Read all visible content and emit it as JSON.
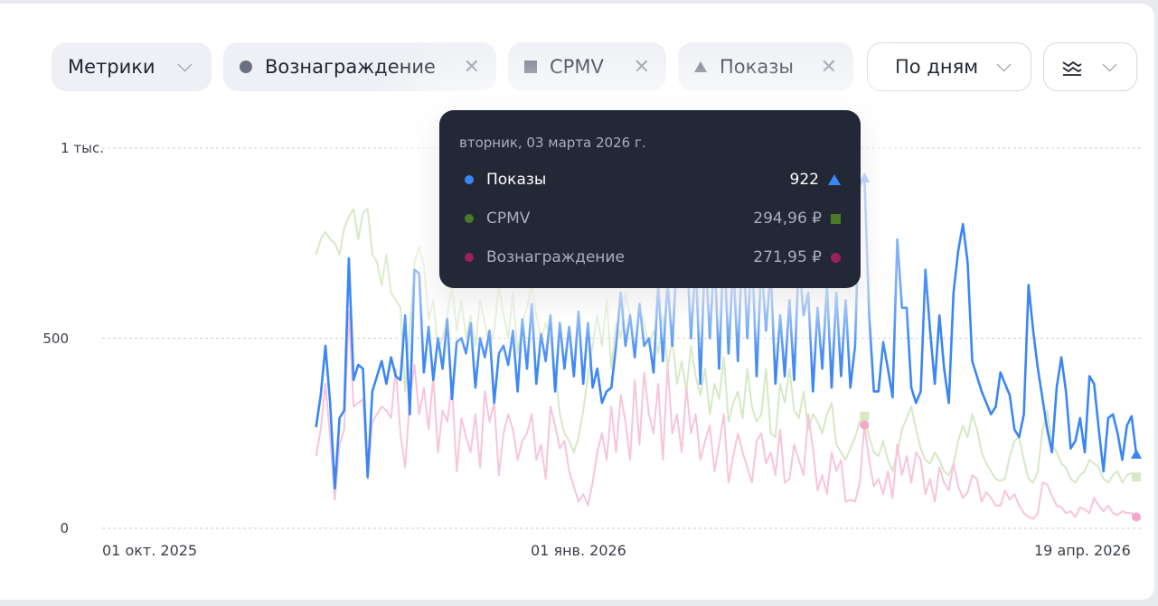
{
  "toolbar": {
    "metrics_label": "Метрики",
    "chips": [
      {
        "label": "Вознаграждение",
        "marker": "circle"
      },
      {
        "label": "CPMV",
        "marker": "square"
      },
      {
        "label": "Показы",
        "marker": "triangle"
      }
    ],
    "period_label": "По дням",
    "chart_type_icon": "chart-lines-icon"
  },
  "tooltip": {
    "date": "вторник, 03 марта 2026 г.",
    "rows": [
      {
        "name": "Показы",
        "value": "922",
        "color": "#3a86f5"
      },
      {
        "name": "CPMV",
        "value": "294,96 ₽",
        "color": "#4a7a2a"
      },
      {
        "name": "Вознаграждение",
        "value": "271,95 ₽",
        "color": "#9c1f5e"
      }
    ]
  },
  "chart_data": {
    "type": "line",
    "x_start": "2025-11-06",
    "x_step": "1 day",
    "xlim": [
      "2025-09-24",
      "2026-04-30"
    ],
    "x_ticks": [
      {
        "date": "2025-10-01",
        "label": "01 окт. 2025"
      },
      {
        "date": "2026-01-01",
        "label": "01 янв. 2026"
      },
      {
        "date": "2026-04-19",
        "label": "19 апр. 2026"
      }
    ],
    "y_ticks": [
      {
        "value": 0,
        "label": "0"
      },
      {
        "value": 500,
        "label": "500"
      },
      {
        "value": 1000,
        "label": "1 тыс."
      }
    ],
    "ylim": [
      0,
      1000
    ],
    "grid": true,
    "hover_index": 117,
    "series": [
      {
        "name": "CPMV",
        "color": "#d6e8c4",
        "marker": "square",
        "values": [
          720,
          760,
          780,
          760,
          750,
          720,
          790,
          820,
          840,
          760,
          830,
          840,
          720,
          700,
          640,
          720,
          620,
          600,
          580,
          360,
          530,
          700,
          740,
          690,
          550,
          600,
          470,
          500,
          560,
          640,
          520,
          600,
          500,
          560,
          480,
          600,
          540,
          480,
          520,
          640,
          560,
          500,
          620,
          460,
          540,
          580,
          640,
          560,
          500,
          540,
          500,
          420,
          300,
          250,
          230,
          200,
          240,
          310,
          400,
          480,
          560,
          480,
          600,
          420,
          540,
          500,
          620,
          560,
          470,
          580,
          540,
          480,
          520,
          460,
          560,
          420,
          500,
          380,
          440,
          360,
          480,
          400,
          350,
          420,
          300,
          380,
          340,
          450,
          280,
          330,
          360,
          290,
          420,
          320,
          280,
          300,
          420,
          250,
          240,
          380,
          330,
          420,
          310,
          290,
          360,
          260,
          300,
          280,
          250,
          300,
          330,
          220,
          200,
          180,
          210,
          240,
          280,
          295,
          240,
          200,
          190,
          230,
          180,
          150,
          200,
          260,
          290,
          320,
          260,
          210,
          180,
          170,
          200,
          180,
          150,
          140,
          170,
          230,
          270,
          240,
          300,
          260,
          200,
          170,
          150,
          130,
          125,
          130,
          190,
          230,
          240,
          180,
          130,
          120,
          150,
          260,
          310,
          220,
          200,
          170,
          160,
          130,
          120,
          140,
          150,
          180,
          170,
          160,
          130,
          120,
          140,
          150,
          120,
          140,
          145,
          135
        ]
      },
      {
        "name": "Вознаграждение",
        "color": "#f7c4dc",
        "marker": "circle",
        "values": [
          190,
          260,
          380,
          240,
          75,
          220,
          260,
          570,
          320,
          330,
          340,
          130,
          280,
          300,
          320,
          310,
          290,
          420,
          250,
          160,
          340,
          430,
          300,
          370,
          260,
          400,
          200,
          310,
          280,
          380,
          150,
          290,
          240,
          200,
          300,
          160,
          360,
          280,
          330,
          140,
          250,
          300,
          260,
          180,
          230,
          250,
          300,
          180,
          220,
          130,
          320,
          270,
          210,
          230,
          150,
          110,
          70,
          90,
          60,
          120,
          200,
          250,
          180,
          320,
          200,
          350,
          280,
          180,
          390,
          220,
          410,
          300,
          250,
          380,
          180,
          430,
          250,
          300,
          200,
          370,
          250,
          300,
          180,
          230,
          270,
          150,
          220,
          300,
          120,
          190,
          250,
          200,
          160,
          120,
          230,
          250,
          170,
          200,
          140,
          260,
          120,
          130,
          220,
          180,
          140,
          300,
          210,
          100,
          140,
          90,
          200,
          150,
          180,
          70,
          75,
          70,
          120,
          272,
          180,
          110,
          130,
          90,
          150,
          80,
          220,
          140,
          190,
          120,
          200,
          180,
          90,
          130,
          70,
          160,
          120,
          100,
          170,
          110,
          80,
          95,
          140,
          130,
          70,
          95,
          80,
          60,
          60,
          100,
          75,
          90,
          60,
          40,
          30,
          25,
          40,
          120,
          115,
          85,
          60,
          55,
          40,
          45,
          30,
          55,
          50,
          40,
          80,
          60,
          45,
          60,
          40,
          35,
          45,
          40,
          40,
          30
        ]
      },
      {
        "name": "Показы",
        "color": "#3a86f5",
        "marker": "triangle",
        "values": [
          266,
          350,
          480,
          330,
          105,
          290,
          310,
          710,
          390,
          430,
          420,
          135,
          360,
          400,
          440,
          380,
          450,
          400,
          390,
          560,
          300,
          680,
          670,
          410,
          530,
          390,
          500,
          420,
          550,
          340,
          490,
          500,
          460,
          540,
          370,
          500,
          450,
          520,
          330,
          460,
          480,
          430,
          520,
          360,
          550,
          420,
          590,
          380,
          510,
          440,
          560,
          360,
          540,
          420,
          530,
          400,
          570,
          380,
          540,
          370,
          420,
          330,
          360,
          370,
          480,
          620,
          480,
          560,
          450,
          590,
          480,
          500,
          410,
          640,
          440,
          650,
          480,
          720,
          660,
          750,
          500,
          700,
          380,
          740,
          500,
          720,
          420,
          760,
          460,
          700,
          440,
          780,
          500,
          740,
          400,
          700,
          520,
          680,
          380,
          560,
          400,
          600,
          390,
          720,
          560,
          620,
          360,
          580,
          420,
          640,
          370,
          620,
          400,
          600,
          370,
          480,
          900,
          922,
          560,
          360,
          360,
          490,
          420,
          345,
          760,
          580,
          580,
          370,
          330,
          360,
          680,
          520,
          380,
          560,
          420,
          330,
          620,
          730,
          800,
          700,
          440,
          400,
          360,
          330,
          300,
          320,
          410,
          380,
          350,
          260,
          240,
          300,
          640,
          520,
          420,
          340,
          260,
          200,
          370,
          450,
          360,
          210,
          230,
          290,
          200,
          400,
          380,
          260,
          150,
          290,
          300,
          250,
          180,
          270,
          295,
          195
        ]
      }
    ]
  }
}
